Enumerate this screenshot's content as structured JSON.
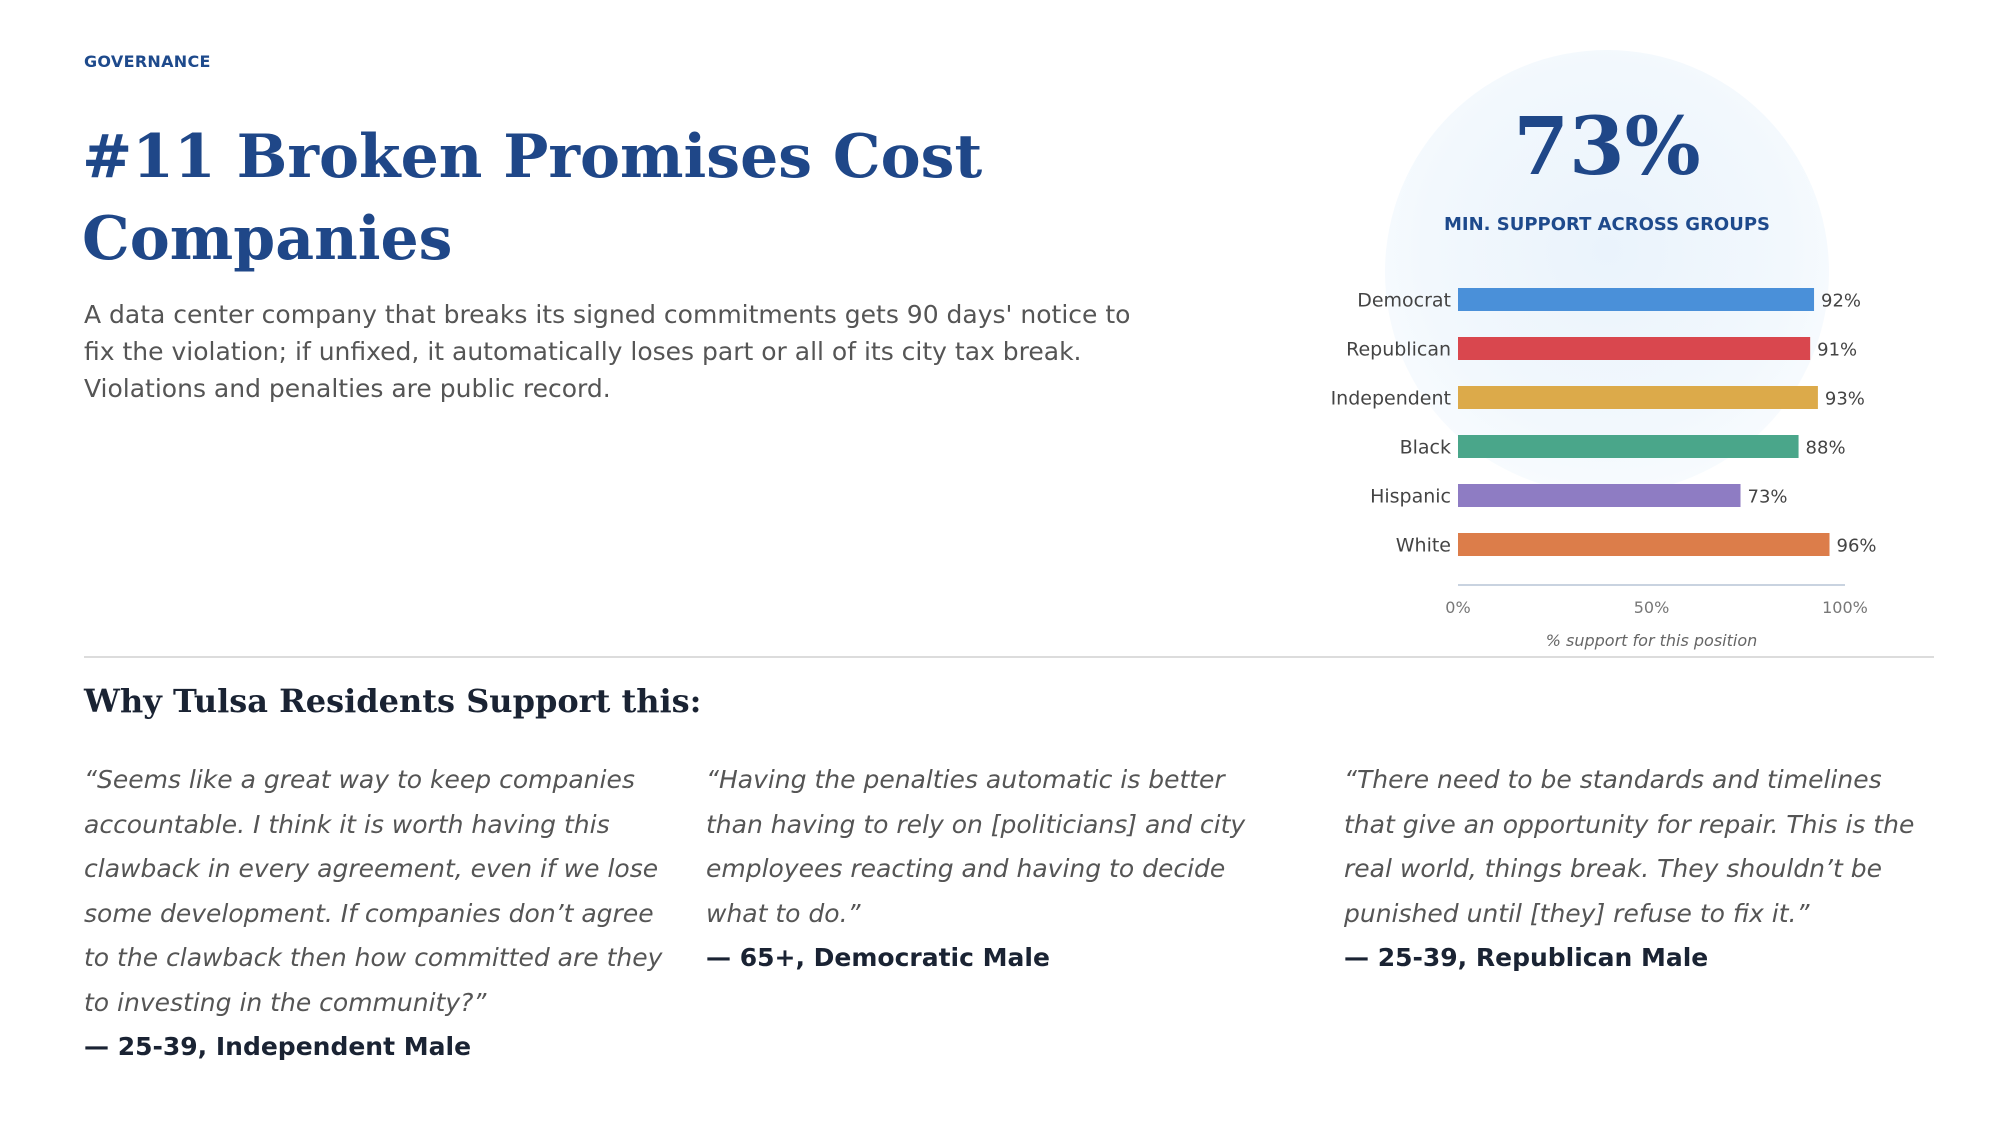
{
  "category": "GOVERNANCE",
  "title": "#11 Broken Promises Cost Companies",
  "description": "A data center company that breaks its signed commitments gets 90 days' notice to fix the violation; if unfixed, it automatically loses part or all of its city tax break. Violations and penalties are public record.",
  "stat": {
    "value": "73%",
    "label": "MIN. SUPPORT ACROSS GROUPS"
  },
  "chart_data": {
    "type": "bar",
    "orientation": "horizontal",
    "categories": [
      "Democrat",
      "Republican",
      "Independent",
      "Black",
      "Hispanic",
      "White"
    ],
    "values": [
      92,
      91,
      93,
      88,
      73,
      96
    ],
    "value_labels": [
      "92%",
      "91%",
      "93%",
      "88%",
      "73%",
      "96%"
    ],
    "colors": [
      "#4a90d9",
      "#d9474e",
      "#dcaa4a",
      "#4aa68a",
      "#8e7cc3",
      "#dc7d4a"
    ],
    "xlim": [
      0,
      100
    ],
    "x_ticks": [
      0,
      50,
      100
    ],
    "x_tick_labels": [
      "0%",
      "50%",
      "100%"
    ],
    "xlabel": "% support for this position",
    "ylabel": "",
    "title": "",
    "grid": false,
    "legend": "none"
  },
  "section_title": "Why Tulsa Residents Support this:",
  "quotes": [
    {
      "text": "“Seems like a great way to keep companies accountable. I think it is worth having this clawback in every agreement, even if we lose some development. If companies don’t agree to the clawback then how committed are they to investing in the community?”",
      "attribution": "— 25-39, Independent Male"
    },
    {
      "text": "“Having the penalties automatic is better than having to rely on [politicians] and city employees reacting and having to decide what to do.”",
      "attribution": "— 65+, Democratic Male"
    },
    {
      "text": "“There need to be standards and timelines that give an opportunity for repair. This is the real world, things break. They shouldn’t be punished until [they] refuse to fix it.”",
      "attribution": "— 25-39, Republican Male"
    }
  ]
}
